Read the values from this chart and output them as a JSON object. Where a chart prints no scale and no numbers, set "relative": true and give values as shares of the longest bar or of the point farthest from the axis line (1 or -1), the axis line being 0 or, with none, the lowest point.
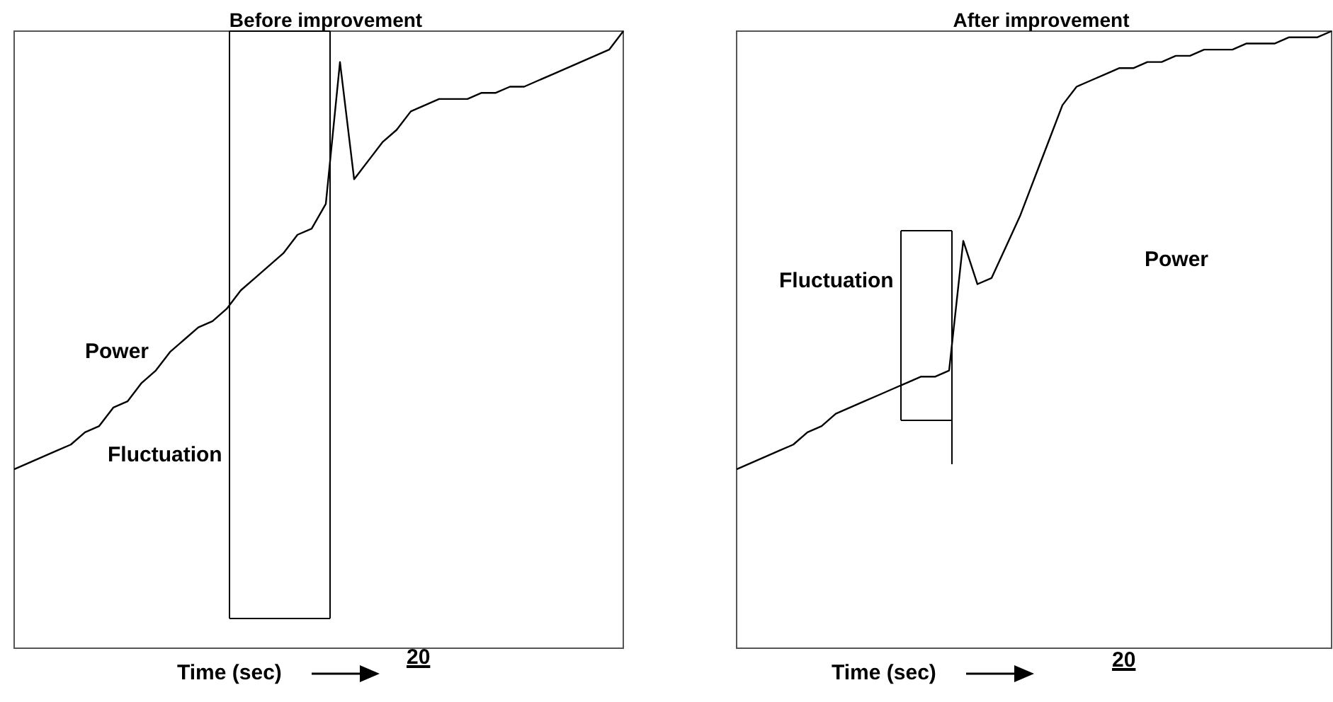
{
  "chart_data": [
    {
      "type": "line",
      "title": "Before improvement",
      "xlabel": "Time (sec)",
      "relative": true,
      "color": "#000000",
      "categories": [
        null,
        null,
        null,
        null,
        null,
        null,
        null,
        null,
        null,
        null,
        null,
        null,
        null,
        null,
        null,
        null,
        null,
        null,
        null,
        null,
        null,
        null,
        null,
        null,
        null,
        null,
        null,
        null,
        null,
        null,
        null,
        null,
        null,
        null,
        null,
        null,
        null,
        null,
        null,
        null,
        null,
        null,
        null,
        null
      ],
      "values": [
        0.29,
        0.3,
        0.31,
        0.32,
        0.33,
        0.35,
        0.36,
        0.39,
        0.4,
        0.43,
        0.45,
        0.48,
        0.5,
        0.52,
        0.53,
        0.55,
        0.58,
        0.6,
        0.62,
        0.64,
        0.67,
        0.68,
        0.72,
        0.95,
        0.76,
        0.79,
        0.82,
        0.84,
        0.87,
        0.88,
        0.89,
        0.89,
        0.89,
        0.9,
        0.9,
        0.91,
        0.91,
        0.92,
        0.93,
        0.94,
        0.95,
        0.96,
        0.97,
        1
      ],
      "annotations": [
        "Power",
        "Fluctuation",
        "20"
      ]
    },
    {
      "type": "line",
      "title": "After improvement",
      "xlabel": "Time (sec)",
      "relative": true,
      "color": "#000000",
      "categories": [
        null,
        null,
        null,
        null,
        null,
        null,
        null,
        null,
        null,
        null,
        null,
        null,
        null,
        null,
        null,
        null,
        null,
        null,
        null,
        null,
        null,
        null,
        null,
        null,
        null,
        null,
        null,
        null,
        null,
        null,
        null,
        null,
        null,
        null,
        null,
        null,
        null,
        null,
        null,
        null,
        null,
        null,
        null
      ],
      "values": [
        0.29,
        0.3,
        0.31,
        0.32,
        0.33,
        0.35,
        0.36,
        0.38,
        0.39,
        0.4,
        0.41,
        0.42,
        0.43,
        0.44,
        0.44,
        0.45,
        0.66,
        0.59,
        0.6,
        0.65,
        0.7,
        0.76,
        0.82,
        0.88,
        0.91,
        0.92,
        0.93,
        0.94,
        0.94,
        0.95,
        0.95,
        0.96,
        0.96,
        0.97,
        0.97,
        0.97,
        0.98,
        0.98,
        0.98,
        0.99,
        0.99,
        0.99,
        1
      ],
      "annotations": [
        "Power",
        "Fluctuation",
        "20"
      ]
    }
  ]
}
